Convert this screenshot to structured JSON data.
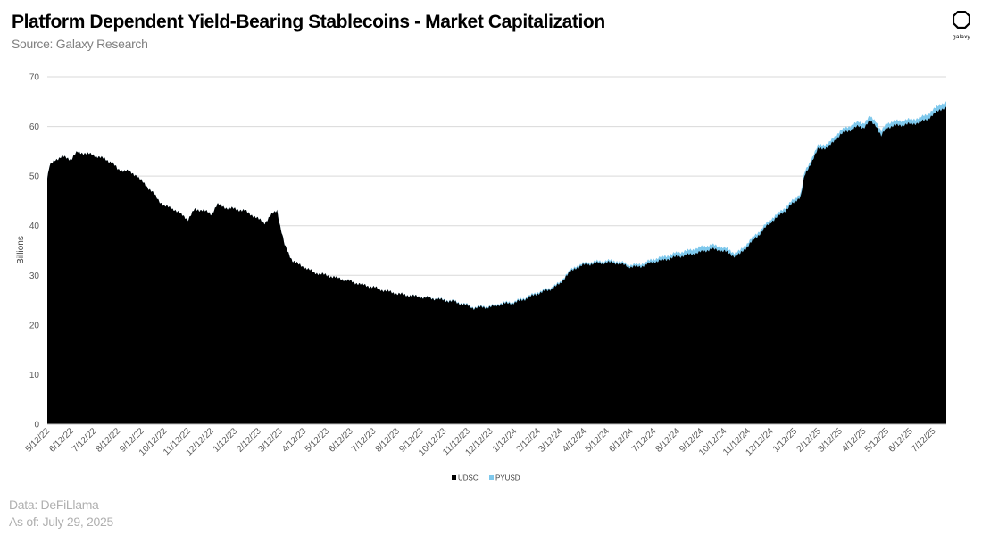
{
  "header": {
    "title": "Platform Dependent Yield-Bearing Stablecoins - Market Capitalization",
    "subtitle": "Source: Galaxy Research",
    "logo_text": "galaxy"
  },
  "footer": {
    "data_source": "Data: DeFiLlama",
    "as_of": "As of: July 29, 2025"
  },
  "colors": {
    "UDSC": "#000000",
    "PYUSD": "#7EC8EC",
    "gridline": "#d9d9d9"
  },
  "chart_data": {
    "type": "area",
    "stacked": true,
    "title": "Platform Dependent Yield-Bearing Stablecoins - Market Capitalization",
    "xlabel": "",
    "ylabel": "Billions",
    "ylim": [
      0,
      70
    ],
    "yticks": [
      0,
      10,
      20,
      30,
      40,
      50,
      60,
      70
    ],
    "grid": true,
    "legend_position": "bottom",
    "x_tick_labels": [
      "5/12/22",
      "6/12/22",
      "7/12/22",
      "8/12/22",
      "9/12/22",
      "10/12/22",
      "11/12/22",
      "12/12/22",
      "1/12/23",
      "2/12/23",
      "3/12/23",
      "4/12/23",
      "5/12/23",
      "6/12/23",
      "7/12/23",
      "8/12/23",
      "9/12/23",
      "10/12/23",
      "11/12/23",
      "12/12/23",
      "1/12/24",
      "2/12/24",
      "3/12/24",
      "4/12/24",
      "5/12/24",
      "6/12/24",
      "7/12/24",
      "8/12/24",
      "9/12/24",
      "10/12/24",
      "11/12/24",
      "12/12/24",
      "1/12/25",
      "2/12/25",
      "3/12/25",
      "4/12/25",
      "5/12/25",
      "6/12/25",
      "7/12/25"
    ],
    "x_start": "5/12/22",
    "x_end": "7/29/25",
    "series": [
      {
        "name": "UDSC",
        "color": "#000000",
        "points": [
          [
            "5/12/22",
            49.5
          ],
          [
            "5/15/22",
            52
          ],
          [
            "5/22/22",
            53.3
          ],
          [
            "6/1/22",
            53.9
          ],
          [
            "6/12/22",
            53.4
          ],
          [
            "6/20/22",
            54.8
          ],
          [
            "7/1/22",
            54.6
          ],
          [
            "7/12/22",
            54.2
          ],
          [
            "7/25/22",
            53.5
          ],
          [
            "8/5/22",
            52.7
          ],
          [
            "8/12/22",
            51.3
          ],
          [
            "8/25/22",
            51
          ],
          [
            "9/5/22",
            50.2
          ],
          [
            "9/12/22",
            49
          ],
          [
            "9/25/22",
            47
          ],
          [
            "10/5/22",
            45
          ],
          [
            "10/12/22",
            44
          ],
          [
            "10/25/22",
            43.3
          ],
          [
            "11/5/22",
            42
          ],
          [
            "11/12/22",
            41.3
          ],
          [
            "11/20/22",
            43.2
          ],
          [
            "12/1/22",
            43.2
          ],
          [
            "12/12/22",
            42.3
          ],
          [
            "12/20/22",
            44.3
          ],
          [
            "1/1/23",
            43.6
          ],
          [
            "1/12/23",
            43.4
          ],
          [
            "1/25/23",
            43
          ],
          [
            "2/5/23",
            42
          ],
          [
            "2/12/23",
            41.3
          ],
          [
            "2/20/23",
            40.6
          ],
          [
            "3/1/23",
            42.2
          ],
          [
            "3/8/23",
            43.2
          ],
          [
            "3/12/23",
            40
          ],
          [
            "3/18/23",
            36
          ],
          [
            "3/28/23",
            33
          ],
          [
            "4/5/23",
            32.2
          ],
          [
            "4/12/23",
            31.7
          ],
          [
            "4/25/23",
            30.6
          ],
          [
            "5/12/23",
            30
          ],
          [
            "5/25/23",
            29.5
          ],
          [
            "6/12/23",
            28.8
          ],
          [
            "6/25/23",
            28.2
          ],
          [
            "7/12/23",
            27.6
          ],
          [
            "7/25/23",
            27
          ],
          [
            "8/12/23",
            26.3
          ],
          [
            "8/25/23",
            26
          ],
          [
            "9/12/23",
            25.6
          ],
          [
            "9/25/23",
            25.4
          ],
          [
            "10/12/23",
            25
          ],
          [
            "10/25/23",
            24.7
          ],
          [
            "11/12/23",
            23.9
          ],
          [
            "11/20/23",
            23.4
          ],
          [
            "12/1/23",
            23.6
          ],
          [
            "12/12/23",
            23.6
          ],
          [
            "12/25/23",
            24.2
          ],
          [
            "1/12/24",
            24.5
          ],
          [
            "1/25/24",
            25.2
          ],
          [
            "2/5/24",
            25.9
          ],
          [
            "2/12/24",
            26.4
          ],
          [
            "2/25/24",
            27
          ],
          [
            "3/12/24",
            28.3
          ],
          [
            "3/20/24",
            30
          ],
          [
            "4/1/24",
            31.5
          ],
          [
            "4/12/24",
            32.1
          ],
          [
            "4/25/24",
            32.4
          ],
          [
            "5/12/24",
            32.6
          ],
          [
            "5/25/24",
            32.5
          ],
          [
            "6/12/24",
            31.7
          ],
          [
            "6/25/24",
            31.8
          ],
          [
            "7/12/24",
            32.7
          ],
          [
            "7/25/24",
            33.1
          ],
          [
            "8/12/24",
            33.8
          ],
          [
            "8/25/24",
            34.1
          ],
          [
            "9/12/24",
            34.7
          ],
          [
            "9/25/24",
            35.3
          ],
          [
            "10/12/24",
            34.9
          ],
          [
            "10/25/24",
            33.9
          ],
          [
            "11/1/24",
            34.2
          ],
          [
            "11/12/24",
            36
          ],
          [
            "11/25/24",
            38
          ],
          [
            "12/12/24",
            40.8
          ],
          [
            "12/25/24",
            42.3
          ],
          [
            "1/12/25",
            44.8
          ],
          [
            "1/20/25",
            46
          ],
          [
            "1/25/25",
            50
          ],
          [
            "2/5/25",
            53.5
          ],
          [
            "2/12/25",
            55.5
          ],
          [
            "2/25/25",
            55.8
          ],
          [
            "3/12/25",
            58.3
          ],
          [
            "3/25/25",
            59.3
          ],
          [
            "4/5/25",
            60
          ],
          [
            "4/12/25",
            59.8
          ],
          [
            "4/20/25",
            61
          ],
          [
            "4/28/25",
            60.3
          ],
          [
            "5/5/25",
            58
          ],
          [
            "5/12/25",
            59.8
          ],
          [
            "5/25/25",
            60.2
          ],
          [
            "6/12/25",
            60.5
          ],
          [
            "6/25/25",
            60.8
          ],
          [
            "7/5/25",
            61.6
          ],
          [
            "7/12/25",
            62.3
          ],
          [
            "7/20/25",
            63.4
          ],
          [
            "7/29/25",
            63.8
          ]
        ]
      },
      {
        "name": "PYUSD",
        "color": "#7EC8EC",
        "points": [
          [
            "5/12/22",
            0
          ],
          [
            "8/10/23",
            0
          ],
          [
            "9/12/23",
            0.05
          ],
          [
            "12/12/23",
            0.2
          ],
          [
            "3/12/24",
            0.3
          ],
          [
            "6/12/24",
            0.4
          ],
          [
            "8/12/24",
            0.8
          ],
          [
            "9/12/24",
            1
          ],
          [
            "10/12/24",
            0.7
          ],
          [
            "12/12/24",
            0.6
          ],
          [
            "2/12/25",
            0.7
          ],
          [
            "4/12/25",
            0.9
          ],
          [
            "6/12/25",
            0.9
          ],
          [
            "7/29/25",
            1.1
          ]
        ]
      }
    ]
  }
}
